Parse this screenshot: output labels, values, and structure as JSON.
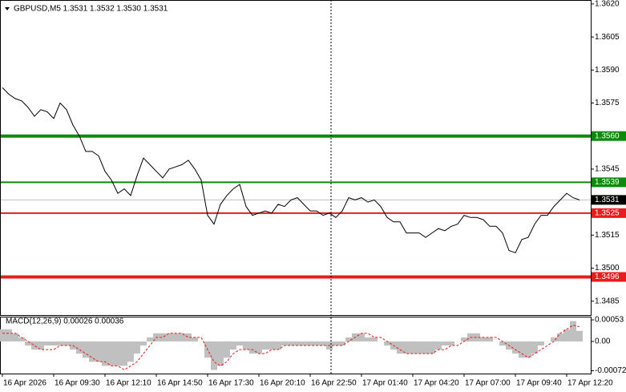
{
  "chart_data": [
    {
      "type": "line",
      "title": "GBPUSD,M5  1.3531 1.3532 1.3530 1.3531",
      "xlim": [
        -0.375,
        91.75
      ],
      "ylim": [
        1.34787,
        1.36218
      ],
      "yticks": [
        {
          "value": 1.362,
          "label": "1.3620"
        },
        1.3605,
        {
          "value": 1.359,
          "label": "1.3590"
        },
        1.3575,
        1.3545,
        1.3515,
        {
          "value": 1.35,
          "label": "1.3500"
        },
        1.3485
      ],
      "series": [
        {
          "color": "#000000",
          "values": [
            1.3582,
            1.3579,
            1.3577,
            1.3576,
            1.3573,
            1.3569,
            1.3572,
            1.3571,
            1.3568,
            1.3575,
            1.3572,
            1.3565,
            1.356,
            1.3553,
            1.3553,
            1.3551,
            1.3544,
            1.354,
            1.3534,
            1.3536,
            1.3533,
            1.3542,
            1.355,
            1.3547,
            1.3544,
            1.3541,
            1.3545,
            1.3546,
            1.3547,
            1.3549,
            1.3545,
            1.354,
            1.3524,
            1.352,
            1.3529,
            1.3533,
            1.3536,
            1.3538,
            1.3528,
            1.3524,
            1.3525,
            1.3526,
            1.3525,
            1.3529,
            1.3528,
            1.3531,
            1.3532,
            1.3529,
            1.3526,
            1.3526,
            1.3524,
            1.3525,
            1.3523,
            1.3526,
            1.3532,
            1.3531,
            1.3532,
            1.353,
            1.3531,
            1.3528,
            1.3523,
            1.3521,
            1.3521,
            1.3516,
            1.3516,
            1.3516,
            1.3514,
            1.3516,
            1.3518,
            1.3517,
            1.3519,
            1.352,
            1.3524,
            1.3523,
            1.3523,
            1.3522,
            1.3519,
            1.3519,
            1.3516,
            1.3508,
            1.3507,
            1.3513,
            1.3514,
            1.352,
            1.3524,
            1.3524,
            1.3528,
            1.3531,
            1.3534,
            1.3532,
            1.3531
          ]
        }
      ],
      "levels": [
        {
          "value": 1.356,
          "label": "1.3560",
          "color": "#0b8a0b",
          "thick": true
        },
        {
          "value": 1.3539,
          "color": "#0b8a0b",
          "thick": false
        },
        {
          "value": 1.3525,
          "color": "#e81c1c",
          "thick": false
        },
        {
          "value": 1.3496,
          "color": "#e81c1c",
          "thick": true
        }
      ],
      "last_price": 1.3531
    },
    {
      "type": "macd",
      "title": "MACD(12,26,9) 0.00026 0.00036",
      "xlim": [
        -0.375,
        91.75
      ],
      "ylim": [
        -0.00079,
        0.00061
      ],
      "yticks": [
        0.00053,
        {
          "value": 0,
          "label": "0.00"
        },
        -0.00072
      ],
      "xticks": [
        {
          "value": 0,
          "label": "16 Apr 2026"
        },
        {
          "value": 8,
          "label": "16 Apr 09:30"
        },
        {
          "value": 16,
          "label": "16 Apr 12:10"
        },
        {
          "value": 24,
          "label": "16 Apr 14:50"
        },
        {
          "value": 32,
          "label": "16 Apr 17:30"
        },
        {
          "value": 40,
          "label": "16 Apr 20:10"
        },
        {
          "value": 48,
          "label": "16 Apr 22:50"
        },
        {
          "value": 56,
          "label": "17 Apr 01:40"
        },
        {
          "value": 64,
          "label": "17 Apr 04:20"
        },
        {
          "value": 72,
          "label": "17 Apr 07:00"
        },
        {
          "value": 80,
          "label": "17 Apr 09:40"
        },
        {
          "value": 88,
          "label": "17 Apr 12:20"
        }
      ],
      "histogram": {
        "color": "#c0c0c0",
        "values": [
          0.0003,
          0.0003,
          0.0002,
          0.0001,
          -0.0001,
          -0.0002,
          -0.0002,
          -0.0001,
          -0.0001,
          -0.0001,
          -0.0001,
          -0.0002,
          -0.0003,
          -0.0004,
          -0.0005,
          -0.0005,
          -0.0006,
          -0.0006,
          -0.0006,
          -0.0006,
          -0.0005,
          -0.0003,
          -0.0001,
          0.0001,
          0.0002,
          0.0002,
          0.0002,
          0.0002,
          0.0002,
          0.0002,
          0.0001,
          0,
          -0.0004,
          -0.0007,
          -0.0006,
          -0.0004,
          -0.0002,
          -0.0001,
          -0.0002,
          -0.0003,
          -0.0003,
          -0.0002,
          -0.0002,
          -0.0002,
          -0.0001,
          -0.0001,
          -0.0001,
          -0.0001,
          -0.0001,
          -0.0001,
          -0.0001,
          -0.0002,
          -0.0001,
          -0.0001,
          0.0001,
          0.0002,
          0.0002,
          0.0001,
          0.0001,
          0,
          -0.0001,
          -0.0002,
          -0.0003,
          -0.0003,
          -0.0003,
          -0.0003,
          -0.0003,
          -0.0003,
          -0.0002,
          -0.0001,
          -0.0001,
          0,
          0.0001,
          0.0002,
          0.0002,
          0.0001,
          0.0001,
          0,
          -0.0001,
          -0.0002,
          -0.0003,
          -0.0004,
          -0.0004,
          -0.0003,
          -0.0001,
          0,
          0.0001,
          0.0002,
          0.0003,
          0.0005,
          0.00026
        ]
      },
      "signal": {
        "color": "#e81c1c",
        "values": [
          0.0002,
          0.0002,
          0.0002,
          0.0001,
          0,
          -0.0001,
          -0.0002,
          -0.0002,
          -0.0002,
          -0.0001,
          -0.0001,
          -0.0001,
          -0.0002,
          -0.0003,
          -0.0004,
          -0.0005,
          -0.0005,
          -0.0006,
          -0.0006,
          -0.0007,
          -0.0006,
          -0.0005,
          -0.0003,
          -0.0001,
          0.0001,
          0.0001,
          0.0002,
          0.0002,
          0.0002,
          0.0001,
          0.0001,
          0.0001,
          -0.0002,
          -0.0005,
          -0.0006,
          -0.0005,
          -0.0003,
          -0.0002,
          -0.0002,
          -0.0002,
          -0.0003,
          -0.0003,
          -0.0002,
          -0.0002,
          -0.0001,
          -0.0001,
          -0.0001,
          -0.0001,
          -0.0001,
          -0.0001,
          -0.0001,
          -0.0001,
          -0.0001,
          -0.0001,
          0,
          0.0001,
          0.0002,
          0.0002,
          0.0001,
          0.0001,
          0,
          -0.0001,
          -0.0002,
          -0.0003,
          -0.0003,
          -0.0003,
          -0.0003,
          -0.0003,
          -0.0002,
          -0.0002,
          -0.0001,
          -0.0001,
          0,
          0.0001,
          0.0001,
          0.0001,
          0.0001,
          0.0001,
          0,
          -0.0001,
          -0.0002,
          -0.0003,
          -0.0004,
          -0.0003,
          -0.0002,
          -0.0001,
          0,
          0.0002,
          0.0003,
          0.0004,
          0.00036
        ]
      }
    }
  ]
}
